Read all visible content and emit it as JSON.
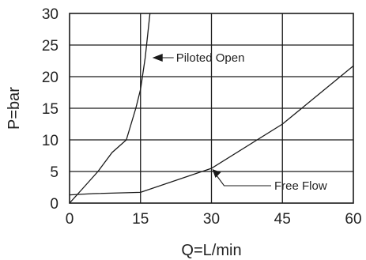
{
  "chart_data": {
    "type": "line",
    "xlabel": "Q=L/min",
    "ylabel": "P=bar",
    "xlim": [
      0,
      60
    ],
    "ylim": [
      0,
      30
    ],
    "xticks": [
      0,
      15,
      30,
      45,
      60
    ],
    "yticks": [
      0,
      5,
      10,
      15,
      20,
      25,
      30
    ],
    "grid": true,
    "series": [
      {
        "name": "Piloted Open",
        "x": [
          0,
          3,
          6,
          9,
          12,
          14,
          15,
          16,
          17
        ],
        "y": [
          0,
          2.5,
          5,
          8,
          10,
          15,
          18,
          23,
          30
        ]
      },
      {
        "name": "Free Flow",
        "x": [
          0,
          5,
          15,
          30,
          45,
          60
        ],
        "y": [
          1.3,
          1.5,
          1.7,
          5.5,
          12.5,
          21.7
        ]
      }
    ],
    "annotations": [
      {
        "text": "Piloted Open",
        "x": 17,
        "y": 23
      },
      {
        "text": "Free Flow",
        "x": 30,
        "y": 5.5
      }
    ]
  },
  "colors": {
    "line": "#1a1a1a",
    "text": "#222222",
    "background": "#ffffff"
  }
}
